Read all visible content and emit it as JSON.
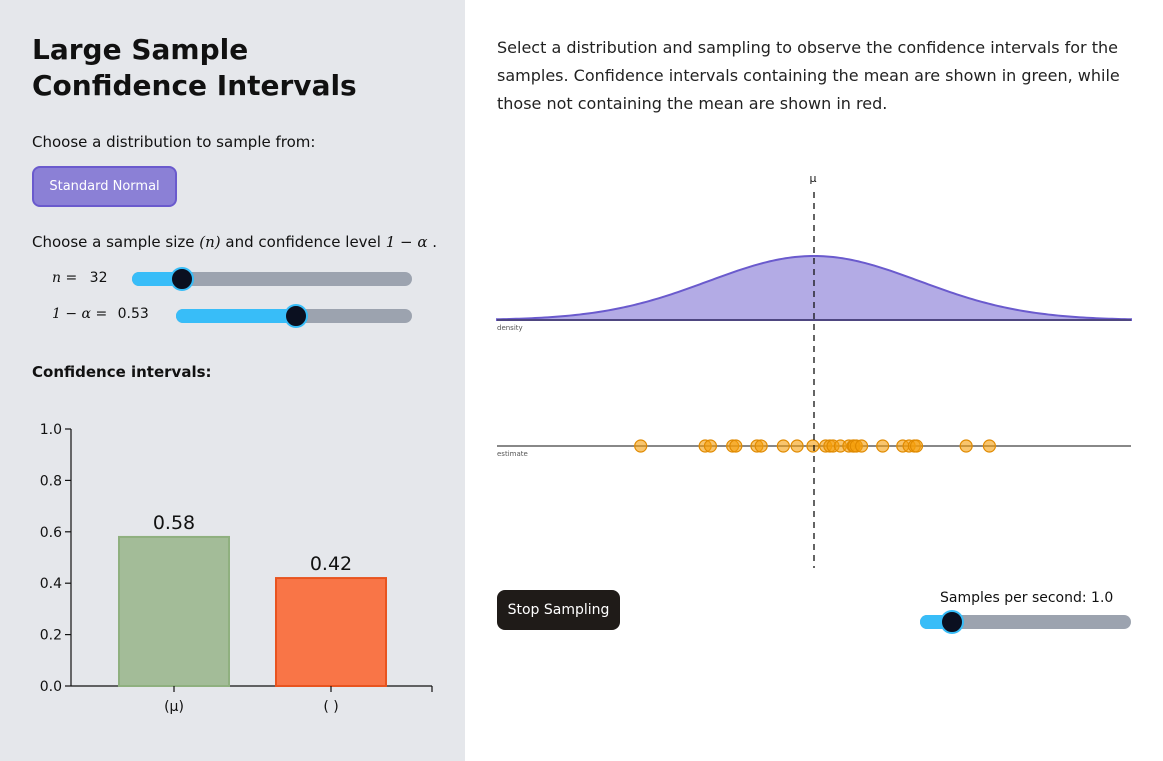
{
  "left": {
    "title": "Large Sample Confidence Intervals",
    "choose_distribution": "Choose a distribution to sample from:",
    "distribution_button": "Standard Normal",
    "choose_sample_prefix": "Choose a sample size ",
    "choose_sample_n": "(n)",
    "choose_sample_mid": " and confidence level ",
    "choose_sample_level": "1 − α",
    "choose_sample_end": " .",
    "n_label": "n =",
    "n_value": "32",
    "n_fraction": 0.18,
    "alpha_label": "1 − α =",
    "alpha_value": "0.53",
    "alpha_fraction": 0.51,
    "ci_heading": "Confidence intervals:"
  },
  "right": {
    "description": "Select a distribution and sampling to observe the confidence intervals for the samples. Confidence intervals containing the mean are shown in green, while those not containing the mean are shown in red.",
    "mu_label": "μ",
    "density_label": "density",
    "estimate_label": "estimate",
    "stop_button": "Stop Sampling",
    "samples_label": "Samples per second: 1.0",
    "samples_fraction": 0.15
  },
  "estimates": {
    "xlim": [
      -3,
      3
    ],
    "values": [
      -1.64,
      -1.03,
      -0.98,
      -0.77,
      -0.74,
      -0.54,
      -0.5,
      -0.29,
      -0.16,
      -0.01,
      0.11,
      0.15,
      0.18,
      0.25,
      0.33,
      0.37,
      0.38,
      0.4,
      0.45,
      0.65,
      0.84,
      0.9,
      0.95,
      0.97,
      1.44,
      1.66
    ],
    "color": "#f59e0b"
  },
  "density_colors": {
    "fill": "#b3abe5",
    "stroke": "#6a5acd"
  },
  "chart_data": {
    "type": "bar",
    "title": "Confidence intervals:",
    "categories": [
      "(μ)",
      "( )"
    ],
    "values": [
      0.58,
      0.42
    ],
    "value_labels": [
      "0.58",
      "0.42"
    ],
    "colors": [
      "#a3bc98",
      "#f97547"
    ],
    "stroke_colors": [
      "#8fb07f",
      "#e8541f"
    ],
    "ylim": [
      0,
      1
    ],
    "yticks": [
      "0.0",
      "0.2",
      "0.4",
      "0.6",
      "0.8",
      "1.0"
    ],
    "xlabel": "",
    "ylabel": ""
  }
}
